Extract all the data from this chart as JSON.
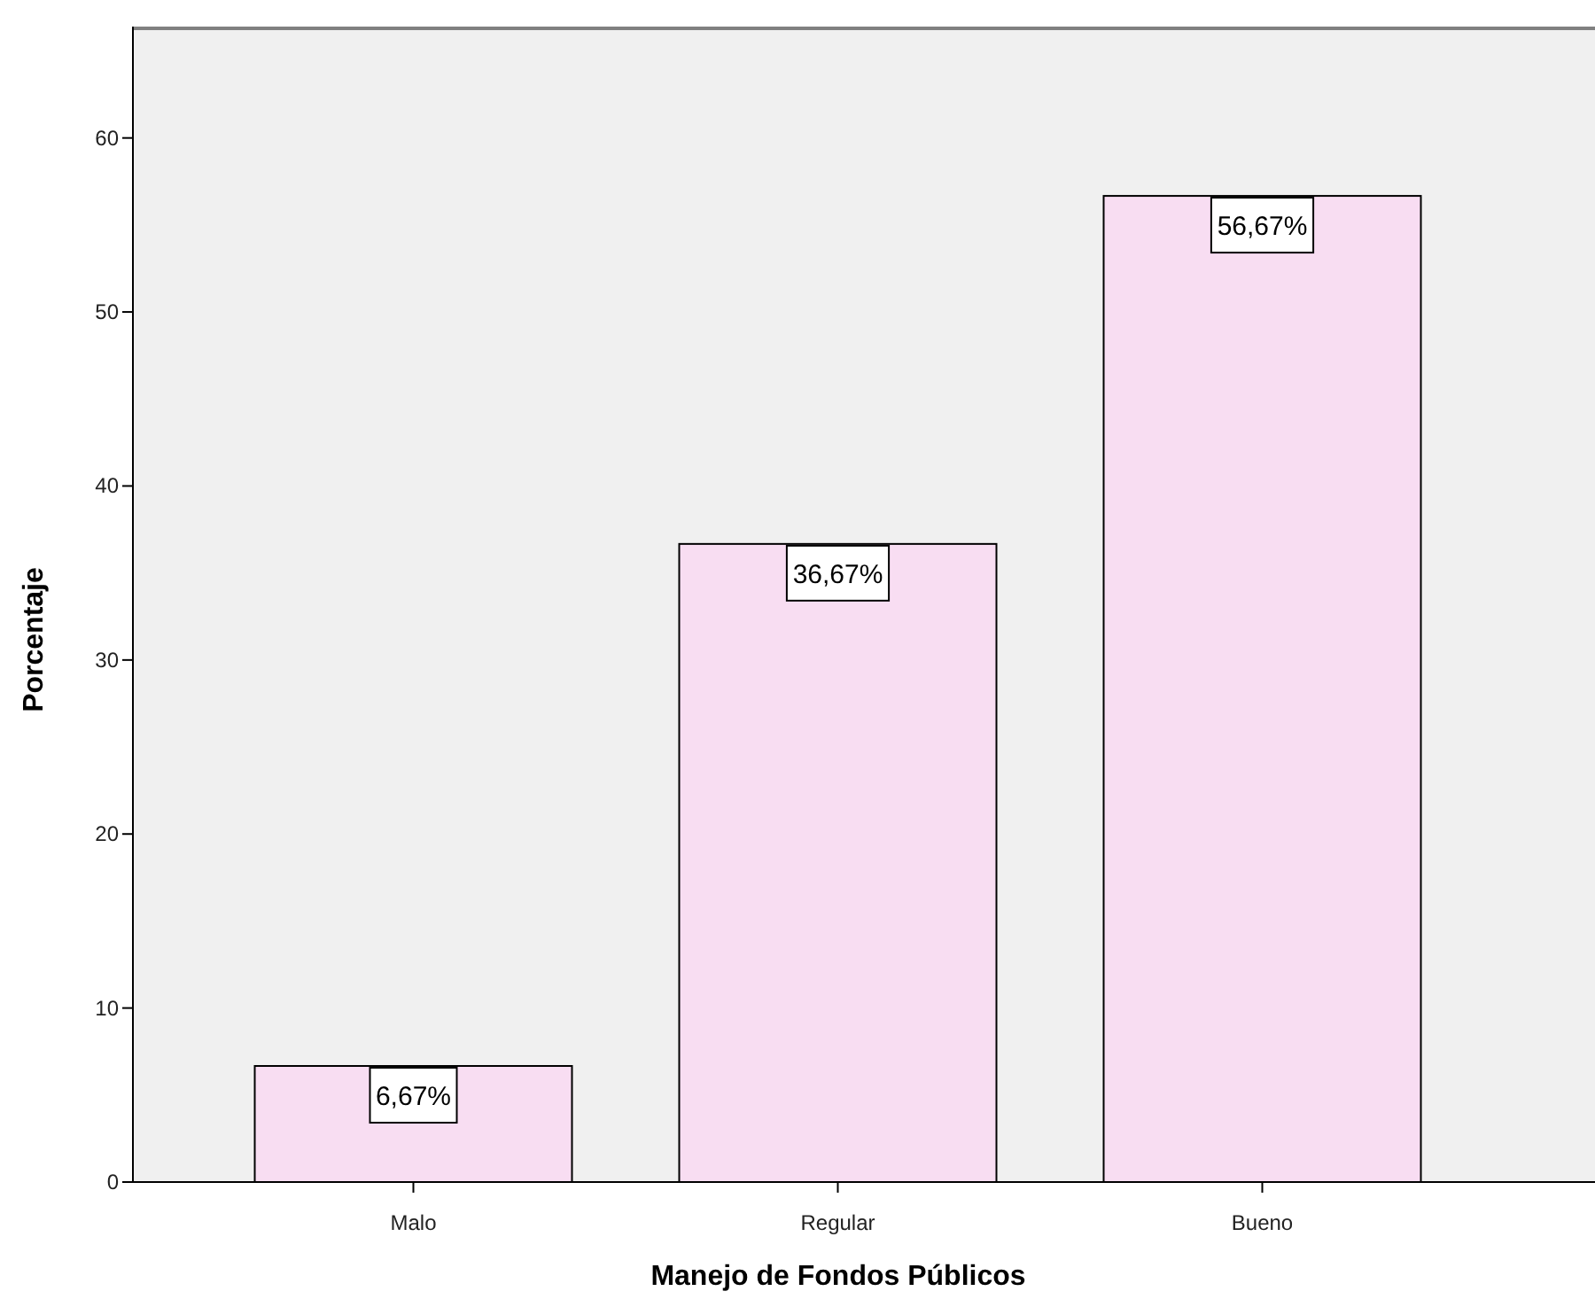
{
  "chart_data": {
    "type": "bar",
    "xlabel": "Manejo de Fondos Públicos",
    "ylabel": "Porcentaje",
    "categories": [
      "Malo",
      "Regular",
      "Bueno"
    ],
    "values": [
      6.67,
      36.67,
      56.67
    ],
    "value_labels": [
      "6,67%",
      "36,67%",
      "56,67%"
    ],
    "color": "#f8ddf2",
    "ylim": [
      0,
      66.4
    ],
    "yticks": [
      0,
      10,
      20,
      30,
      40,
      50,
      60
    ],
    "grid": false
  }
}
